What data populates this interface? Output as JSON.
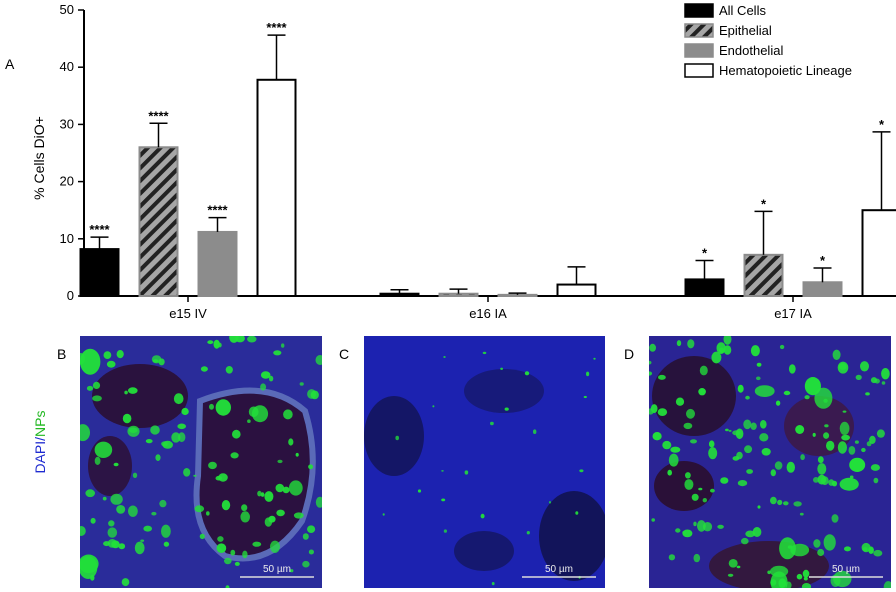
{
  "panels": {
    "a": "A",
    "b": "B",
    "c": "C",
    "d": "D"
  },
  "side_label": {
    "dapi": "DAPI",
    "sep": "/",
    "nps": "NPs"
  },
  "scale_bar_text": "50 µm",
  "colors": {
    "all_cells": "#000000",
    "epithelial": "#a6a6a6",
    "endothelial": "#8c8c8c",
    "hematopoietic": "#ffffff",
    "dapi": "#1f2bd0",
    "nps": "#22e03a"
  },
  "chart_data": {
    "type": "bar",
    "ylabel": "% Cells DiO+",
    "ylim": [
      0,
      50
    ],
    "yticks": [
      0,
      10,
      20,
      30,
      40,
      50
    ],
    "categories": [
      "e15 IV",
      "e16 IA",
      "e17 IA"
    ],
    "legend_position": "top-right",
    "series": [
      {
        "name": "All Cells",
        "values": [
          8.2,
          0.4,
          2.9
        ],
        "errors": [
          2.1,
          0.7,
          3.3
        ],
        "sig": [
          "****",
          "",
          "*"
        ]
      },
      {
        "name": "Epithelial",
        "values": [
          26.0,
          0.4,
          7.2
        ],
        "errors": [
          4.2,
          0.8,
          7.6
        ],
        "sig": [
          "****",
          "",
          "*"
        ]
      },
      {
        "name": "Endothelial",
        "values": [
          11.2,
          0.2,
          2.4
        ],
        "errors": [
          2.5,
          0.3,
          2.5
        ],
        "sig": [
          "****",
          "",
          "*"
        ]
      },
      {
        "name": "Hematopoietic Lineage",
        "values": [
          37.8,
          2.0,
          15.0
        ],
        "errors": [
          7.8,
          3.1,
          13.7
        ],
        "sig": [
          "****",
          "",
          "*"
        ]
      }
    ]
  }
}
